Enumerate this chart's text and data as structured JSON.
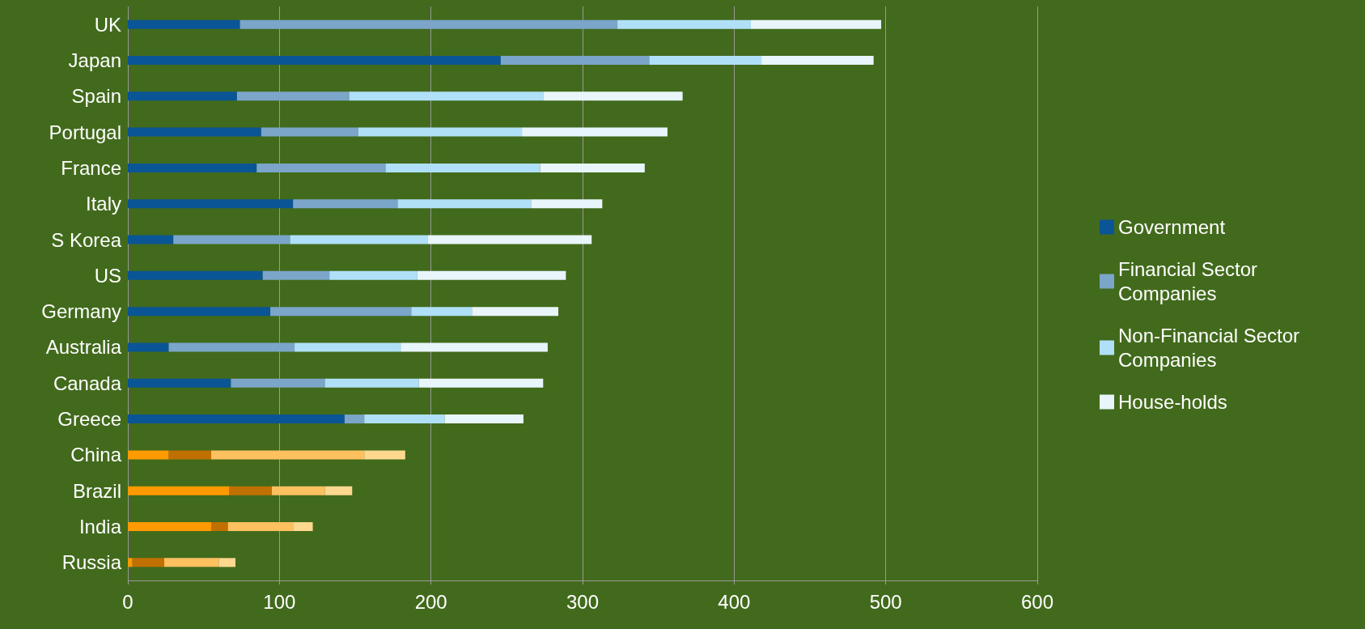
{
  "chart_data": {
    "type": "bar",
    "orientation": "horizontal",
    "stacked": true,
    "categories": [
      "UK",
      "Japan",
      "Spain",
      "Portugal",
      "France",
      "Italy",
      "S Korea",
      "US",
      "Germany",
      "Australia",
      "Canada",
      "Greece",
      "China",
      "Brazil",
      "India",
      "Russia"
    ],
    "series": [
      {
        "name": "Government",
        "color": "#0a5595",
        "colors": [
          "#0a5595",
          "#0a5595",
          "#0a5595",
          "#0a5595",
          "#0a5595",
          "#0a5595",
          "#0a5595",
          "#0a5595",
          "#0a5595",
          "#0a5595",
          "#0a5595",
          "#0a5595",
          "#ff9a00",
          "#ff9a00",
          "#ff9a00",
          "#ff9a00"
        ],
        "values": [
          74,
          246,
          72,
          88,
          85,
          109,
          30,
          89,
          94,
          27,
          68,
          143,
          27,
          67,
          55,
          3
        ]
      },
      {
        "name": "Financial Sector Companies",
        "color": "#7ba5c9",
        "colors": [
          "#7ba5c9",
          "#7ba5c9",
          "#7ba5c9",
          "#7ba5c9",
          "#7ba5c9",
          "#7ba5c9",
          "#7ba5c9",
          "#7ba5c9",
          "#7ba5c9",
          "#7ba5c9",
          "#7ba5c9",
          "#7ba5c9",
          "#c07000",
          "#c07000",
          "#c07000",
          "#c07000"
        ],
        "values": [
          249,
          98,
          74,
          64,
          85,
          69,
          77,
          44,
          93,
          83,
          62,
          13,
          28,
          28,
          11,
          21
        ]
      },
      {
        "name": "Non-Financial Sector Companies",
        "color": "#b0e0f8",
        "colors": [
          "#b0e0f8",
          "#b0e0f8",
          "#b0e0f8",
          "#b0e0f8",
          "#b0e0f8",
          "#b0e0f8",
          "#b0e0f8",
          "#b0e0f8",
          "#b0e0f8",
          "#b0e0f8",
          "#b0e0f8",
          "#b0e0f8",
          "#ffc060",
          "#ffc060",
          "#ffc060",
          "#ffc060"
        ],
        "values": [
          88,
          74,
          128,
          108,
          102,
          88,
          91,
          58,
          40,
          70,
          62,
          53,
          101,
          35,
          43,
          36
        ]
      },
      {
        "name": "House-holds",
        "color": "#e8f5fb",
        "colors": [
          "#e8f5fb",
          "#e8f5fb",
          "#e8f5fb",
          "#e8f5fb",
          "#e8f5fb",
          "#e8f5fb",
          "#e8f5fb",
          "#e8f5fb",
          "#e8f5fb",
          "#e8f5fb",
          "#e8f5fb",
          "#e8f5fb",
          "#ffd890",
          "#ffd890",
          "#ffd890",
          "#ffd890"
        ],
        "values": [
          86,
          74,
          92,
          96,
          69,
          47,
          108,
          98,
          57,
          97,
          82,
          52,
          27,
          18,
          13,
          11
        ]
      }
    ],
    "xlim": [
      0,
      600
    ],
    "xticks": [
      0,
      100,
      200,
      300,
      400,
      500,
      600
    ],
    "grid": "x",
    "legend": "right"
  }
}
